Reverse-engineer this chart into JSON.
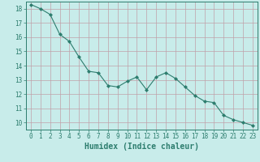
{
  "x": [
    0,
    1,
    2,
    3,
    4,
    5,
    6,
    7,
    8,
    9,
    10,
    11,
    12,
    13,
    14,
    15,
    16,
    17,
    18,
    19,
    20,
    21,
    22,
    23
  ],
  "y": [
    18.3,
    18.0,
    17.6,
    16.2,
    15.7,
    14.6,
    13.6,
    13.5,
    12.6,
    12.5,
    12.9,
    13.2,
    12.3,
    13.2,
    13.5,
    13.1,
    12.5,
    11.9,
    11.5,
    11.4,
    10.5,
    10.2,
    10.0,
    9.8
  ],
  "line_color": "#2d7d6e",
  "marker": "D",
  "marker_size": 2.0,
  "bg_color": "#c8ecea",
  "grid_color": "#b8d8d4",
  "grid_major_color": "#c0a0a8",
  "xlabel": "Humidex (Indice chaleur)",
  "xlim": [
    -0.5,
    23.5
  ],
  "ylim": [
    9.5,
    18.5
  ],
  "yticks": [
    10,
    11,
    12,
    13,
    14,
    15,
    16,
    17,
    18
  ],
  "xticks": [
    0,
    1,
    2,
    3,
    4,
    5,
    6,
    7,
    8,
    9,
    10,
    11,
    12,
    13,
    14,
    15,
    16,
    17,
    18,
    19,
    20,
    21,
    22,
    23
  ],
  "tick_color": "#2d7d6e",
  "label_color": "#2d7d6e",
  "spine_color": "#2d7d6e",
  "tick_fontsize": 5.5,
  "xlabel_fontsize": 7.0
}
